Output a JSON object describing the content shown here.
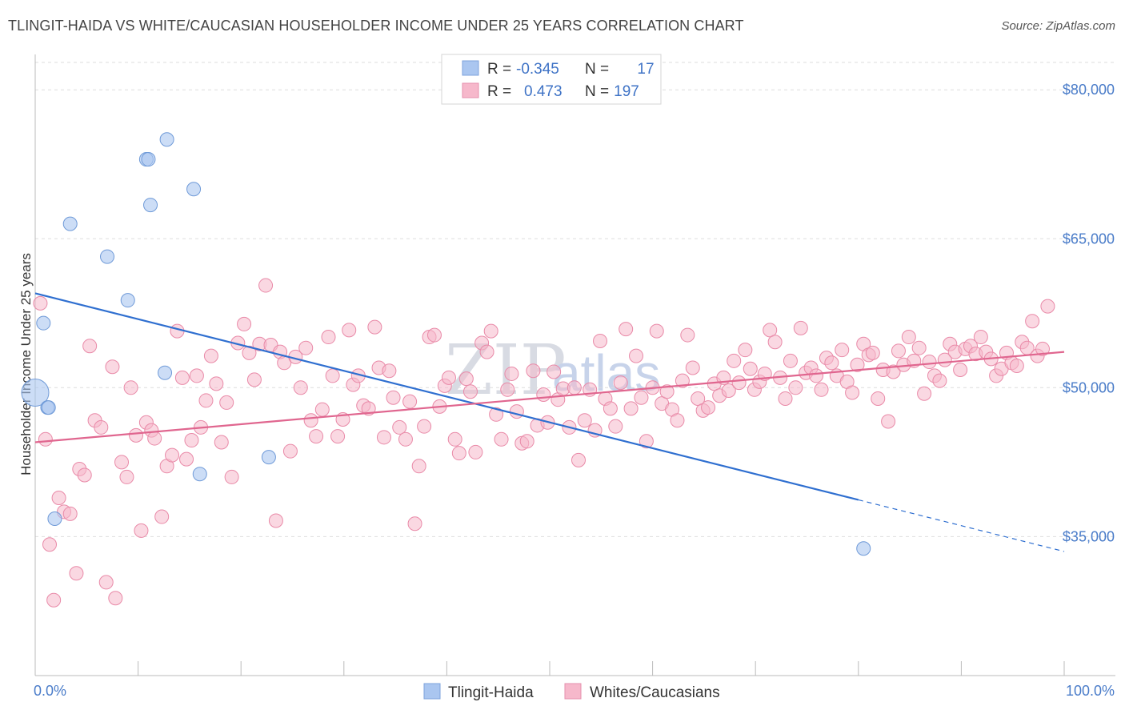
{
  "header": {
    "title": "TLINGIT-HAIDA VS WHITE/CAUCASIAN HOUSEHOLDER INCOME UNDER 25 YEARS CORRELATION CHART",
    "source": "Source: ZipAtlas.com"
  },
  "watermark": {
    "part1": "ZIP",
    "part2": "atlas"
  },
  "legend": {
    "rows": [
      {
        "r_label": "R =",
        "r_value": "-0.345",
        "n_label": "N =",
        "n_value": "17",
        "color": "#aac6f0"
      },
      {
        "r_label": "R =",
        "r_value": "0.473",
        "n_label": "N =",
        "n_value": "197",
        "color": "#f6b8cb"
      }
    ]
  },
  "bottom_legend": {
    "items": [
      {
        "label": "Tlingit-Haida",
        "color": "#aac6f0"
      },
      {
        "label": "Whites/Caucasians",
        "color": "#f6b8cb"
      }
    ]
  },
  "chart_data": {
    "type": "scatter",
    "title": "TLINGIT-HAIDA VS WHITE/CAUCASIAN HOUSEHOLDER INCOME UNDER 25 YEARS CORRELATION CHART",
    "xlabel": "",
    "ylabel": "Householder Income Under 25 years",
    "xlim": [
      0,
      100
    ],
    "ylim": [
      21000,
      83000
    ],
    "x_tick_labels": [
      "0.0%",
      "100.0%"
    ],
    "y_ticks": [
      35000,
      50000,
      65000,
      80000
    ],
    "y_tick_labels": [
      "$35,000",
      "$50,000",
      "$65,000",
      "$80,000"
    ],
    "grid": true,
    "legend_position": "top-center",
    "series": [
      {
        "name": "Tlingit-Haida",
        "color": "#aac6f0",
        "edge": "#6f9ad8",
        "trend": {
          "x0": 0,
          "y0": 59500,
          "x1": 80,
          "y1": 38700,
          "dash_to_x": 100,
          "dash_to_y": 33500,
          "color": "#2f6fd0"
        },
        "points": [
          [
            0,
            49500
          ],
          [
            0.8,
            56500
          ],
          [
            1.2,
            48000
          ],
          [
            1.3,
            48000
          ],
          [
            1.9,
            36800
          ],
          [
            3.4,
            66500
          ],
          [
            7.0,
            63200
          ],
          [
            9.0,
            58800
          ],
          [
            10.8,
            73000
          ],
          [
            11.0,
            73000
          ],
          [
            11.2,
            68400
          ],
          [
            12.6,
            51500
          ],
          [
            12.8,
            75000
          ],
          [
            15.4,
            70000
          ],
          [
            16.0,
            41300
          ],
          [
            22.7,
            43000
          ],
          [
            80.5,
            33800
          ]
        ]
      },
      {
        "name": "Whites/Caucasians",
        "color": "#f6b8cb",
        "edge": "#e98aa8",
        "trend": {
          "x0": 0,
          "y0": 44500,
          "x1": 100,
          "y1": 53600,
          "color": "#e0668f"
        },
        "points": [
          [
            0.5,
            58500
          ],
          [
            1.0,
            44800
          ],
          [
            1.4,
            34200
          ],
          [
            1.8,
            28600
          ],
          [
            2.3,
            38900
          ],
          [
            2.8,
            37500
          ],
          [
            3.4,
            37300
          ],
          [
            4.0,
            31300
          ],
          [
            4.3,
            41800
          ],
          [
            4.8,
            41200
          ],
          [
            5.3,
            54200
          ],
          [
            5.8,
            46700
          ],
          [
            6.4,
            46000
          ],
          [
            6.9,
            30400
          ],
          [
            7.5,
            52100
          ],
          [
            7.8,
            28800
          ],
          [
            8.4,
            42500
          ],
          [
            8.9,
            41000
          ],
          [
            9.3,
            50000
          ],
          [
            9.8,
            45200
          ],
          [
            10.3,
            35600
          ],
          [
            10.8,
            46500
          ],
          [
            11.3,
            45700
          ],
          [
            11.6,
            44900
          ],
          [
            12.3,
            37000
          ],
          [
            12.8,
            42100
          ],
          [
            13.3,
            43200
          ],
          [
            13.8,
            55700
          ],
          [
            14.3,
            51000
          ],
          [
            14.7,
            42800
          ],
          [
            15.2,
            44700
          ],
          [
            15.7,
            51200
          ],
          [
            16.1,
            46000
          ],
          [
            16.6,
            48700
          ],
          [
            17.1,
            53200
          ],
          [
            17.6,
            50400
          ],
          [
            18.1,
            44500
          ],
          [
            18.6,
            48500
          ],
          [
            19.1,
            41000
          ],
          [
            19.7,
            54500
          ],
          [
            20.3,
            56400
          ],
          [
            20.8,
            53500
          ],
          [
            21.3,
            50800
          ],
          [
            21.8,
            54400
          ],
          [
            22.4,
            60300
          ],
          [
            22.9,
            54300
          ],
          [
            23.4,
            36600
          ],
          [
            23.8,
            53600
          ],
          [
            24.2,
            52500
          ],
          [
            24.8,
            43600
          ],
          [
            25.3,
            53100
          ],
          [
            25.8,
            50000
          ],
          [
            26.3,
            54000
          ],
          [
            26.8,
            46700
          ],
          [
            27.3,
            45100
          ],
          [
            27.9,
            47800
          ],
          [
            28.5,
            55100
          ],
          [
            28.9,
            51200
          ],
          [
            29.4,
            45100
          ],
          [
            29.9,
            46800
          ],
          [
            30.5,
            55800
          ],
          [
            30.9,
            50300
          ],
          [
            31.4,
            51200
          ],
          [
            31.9,
            48200
          ],
          [
            32.4,
            47900
          ],
          [
            33.0,
            56100
          ],
          [
            33.4,
            52000
          ],
          [
            33.9,
            45000
          ],
          [
            34.4,
            51700
          ],
          [
            34.8,
            49000
          ],
          [
            35.4,
            46000
          ],
          [
            36.0,
            44800
          ],
          [
            36.4,
            48600
          ],
          [
            36.9,
            36300
          ],
          [
            37.3,
            42100
          ],
          [
            37.8,
            46100
          ],
          [
            38.3,
            55100
          ],
          [
            38.8,
            55300
          ],
          [
            39.3,
            48100
          ],
          [
            39.8,
            50200
          ],
          [
            40.2,
            51000
          ],
          [
            40.8,
            44800
          ],
          [
            41.2,
            43400
          ],
          [
            41.9,
            50900
          ],
          [
            42.3,
            49600
          ],
          [
            42.8,
            43500
          ],
          [
            43.4,
            54500
          ],
          [
            43.9,
            53600
          ],
          [
            44.3,
            55700
          ],
          [
            44.8,
            47300
          ],
          [
            45.3,
            44800
          ],
          [
            45.9,
            49800
          ],
          [
            46.3,
            51400
          ],
          [
            46.8,
            47600
          ],
          [
            47.3,
            44400
          ],
          [
            47.8,
            44600
          ],
          [
            48.4,
            51700
          ],
          [
            48.8,
            46200
          ],
          [
            49.4,
            49300
          ],
          [
            49.8,
            46500
          ],
          [
            50.4,
            51600
          ],
          [
            50.8,
            48800
          ],
          [
            51.3,
            49900
          ],
          [
            51.9,
            46000
          ],
          [
            52.4,
            50000
          ],
          [
            52.8,
            42700
          ],
          [
            53.4,
            46700
          ],
          [
            53.9,
            49800
          ],
          [
            54.4,
            45700
          ],
          [
            54.9,
            54700
          ],
          [
            55.4,
            48900
          ],
          [
            55.9,
            47900
          ],
          [
            56.4,
            46100
          ],
          [
            56.9,
            50500
          ],
          [
            57.4,
            55900
          ],
          [
            57.9,
            47900
          ],
          [
            58.4,
            53200
          ],
          [
            58.9,
            49000
          ],
          [
            59.4,
            44600
          ],
          [
            60.0,
            50000
          ],
          [
            60.4,
            55700
          ],
          [
            60.9,
            48400
          ],
          [
            61.4,
            49600
          ],
          [
            61.9,
            47800
          ],
          [
            62.4,
            46700
          ],
          [
            62.9,
            50700
          ],
          [
            63.4,
            55300
          ],
          [
            63.9,
            52000
          ],
          [
            64.4,
            48900
          ],
          [
            64.9,
            47700
          ],
          [
            65.4,
            48000
          ],
          [
            66.0,
            50400
          ],
          [
            66.5,
            49200
          ],
          [
            66.9,
            51000
          ],
          [
            67.4,
            49700
          ],
          [
            67.9,
            52700
          ],
          [
            68.4,
            50500
          ],
          [
            69.0,
            53800
          ],
          [
            69.5,
            51900
          ],
          [
            69.9,
            49800
          ],
          [
            70.4,
            50600
          ],
          [
            70.9,
            51400
          ],
          [
            71.4,
            55800
          ],
          [
            71.9,
            54600
          ],
          [
            72.4,
            51000
          ],
          [
            72.9,
            48900
          ],
          [
            73.4,
            52700
          ],
          [
            73.9,
            50000
          ],
          [
            74.4,
            56000
          ],
          [
            74.9,
            51500
          ],
          [
            75.4,
            52000
          ],
          [
            75.9,
            51200
          ],
          [
            76.4,
            49800
          ],
          [
            76.9,
            53000
          ],
          [
            77.4,
            52500
          ],
          [
            77.9,
            51200
          ],
          [
            78.4,
            53800
          ],
          [
            78.9,
            50600
          ],
          [
            79.4,
            49500
          ],
          [
            79.9,
            52300
          ],
          [
            80.5,
            54400
          ],
          [
            81.0,
            53300
          ],
          [
            81.4,
            53500
          ],
          [
            81.9,
            48900
          ],
          [
            82.4,
            51800
          ],
          [
            82.9,
            46600
          ],
          [
            83.4,
            51600
          ],
          [
            83.9,
            53700
          ],
          [
            84.4,
            52300
          ],
          [
            84.9,
            55100
          ],
          [
            85.4,
            52700
          ],
          [
            85.9,
            54000
          ],
          [
            86.4,
            49400
          ],
          [
            86.9,
            52600
          ],
          [
            87.4,
            51200
          ],
          [
            87.9,
            50700
          ],
          [
            88.4,
            52800
          ],
          [
            88.9,
            54400
          ],
          [
            89.4,
            53600
          ],
          [
            89.9,
            51800
          ],
          [
            90.4,
            53900
          ],
          [
            90.9,
            54200
          ],
          [
            91.4,
            53400
          ],
          [
            91.9,
            55100
          ],
          [
            92.4,
            53600
          ],
          [
            92.9,
            52900
          ],
          [
            93.4,
            51200
          ],
          [
            93.9,
            51900
          ],
          [
            94.4,
            53500
          ],
          [
            94.9,
            52500
          ],
          [
            95.4,
            52200
          ],
          [
            95.9,
            54600
          ],
          [
            96.4,
            54000
          ],
          [
            96.9,
            56700
          ],
          [
            97.4,
            53200
          ],
          [
            97.9,
            53900
          ],
          [
            98.4,
            58200
          ]
        ]
      }
    ]
  }
}
